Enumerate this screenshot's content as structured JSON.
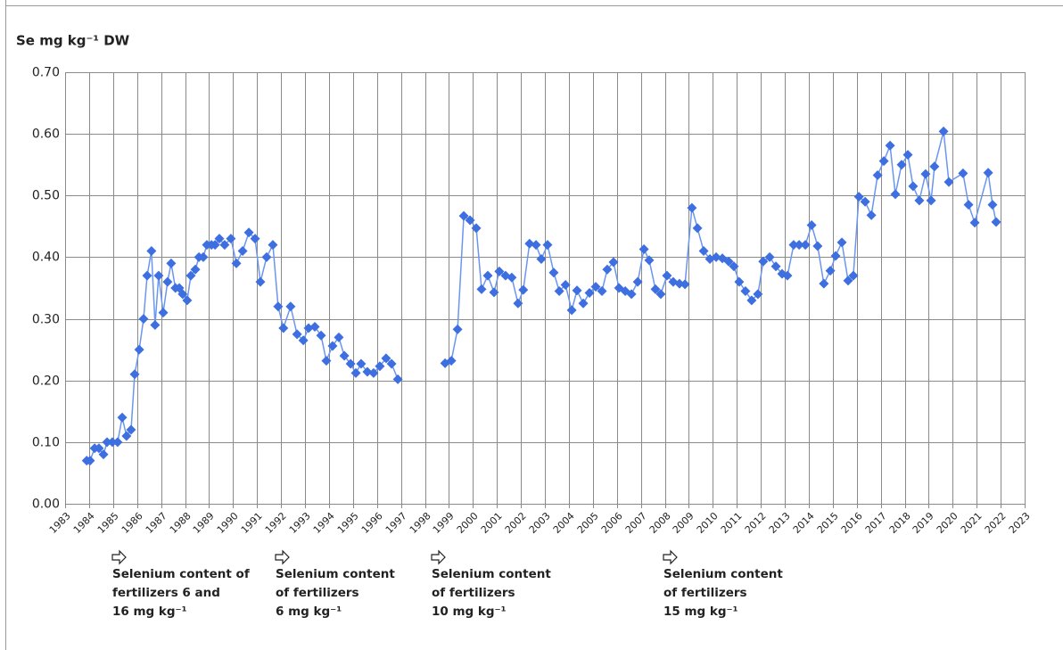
{
  "chart_data": {
    "type": "line",
    "ylabel": "Se mg kg⁻¹ DW",
    "color": "#3d6fe0",
    "grid": true,
    "ylim": [
      0,
      0.7
    ],
    "yticks": [
      {
        "value": 0,
        "label": "0.00"
      },
      {
        "value": 0.1,
        "label": "0.10"
      },
      {
        "value": 0.2,
        "label": "0.20"
      },
      {
        "value": 0.3,
        "label": "0.30"
      },
      {
        "value": 0.4,
        "label": "0.40"
      },
      {
        "value": 0.5,
        "label": "0.50"
      },
      {
        "value": 0.6,
        "label": "0.60"
      },
      {
        "value": 0.7,
        "label": "0.70"
      }
    ],
    "xlim": [
      1983,
      2023
    ],
    "xticks": [
      1983,
      1984,
      1985,
      1986,
      1987,
      1988,
      1989,
      1990,
      1991,
      1992,
      1993,
      1994,
      1995,
      1996,
      1997,
      1998,
      1999,
      2000,
      2001,
      2002,
      2003,
      2004,
      2005,
      2006,
      2007,
      2008,
      2009,
      2010,
      2011,
      2012,
      2013,
      2014,
      2015,
      2016,
      2017,
      2018,
      2019,
      2020,
      2021,
      2022,
      2023
    ],
    "x": [
      1983.9,
      1984.04,
      1984.23,
      1984.41,
      1984.6,
      1984.75,
      1984.97,
      1985.19,
      1985.38,
      1985.56,
      1985.75,
      1985.9,
      1986.09,
      1986.27,
      1986.42,
      1986.6,
      1986.75,
      1986.9,
      1987.09,
      1987.27,
      1987.42,
      1987.6,
      1987.76,
      1987.9,
      1988.09,
      1988.24,
      1988.43,
      1988.58,
      1988.76,
      1988.91,
      1989.1,
      1989.25,
      1989.43,
      1989.65,
      1989.91,
      1990.14,
      1990.4,
      1990.66,
      1990.92,
      1991.14,
      1991.4,
      1991.66,
      1991.88,
      1992.1,
      1992.4,
      1992.67,
      1992.93,
      1993.15,
      1993.41,
      1993.67,
      1993.89,
      1994.15,
      1994.41,
      1994.64,
      1994.9,
      1995.12,
      1995.34,
      1995.6,
      1995.86,
      1996.12,
      1996.38,
      1996.61,
      1996.87,
      1997.9,
      1998.84,
      1999.1,
      1999.36,
      1999.62,
      1999.88,
      2000.14,
      2000.36,
      2000.62,
      2000.88,
      2001.1,
      2001.36,
      2001.62,
      2001.88,
      2002.1,
      2002.36,
      2002.63,
      2002.85,
      2003.11,
      2003.37,
      2003.6,
      2003.86,
      2004.12,
      2004.34,
      2004.6,
      2004.86,
      2005.12,
      2005.38,
      2005.6,
      2005.86,
      2006.09,
      2006.35,
      2006.61,
      2006.87,
      2007.13,
      2007.35,
      2007.61,
      2007.83,
      2008.09,
      2008.35,
      2008.61,
      2008.84,
      2009.13,
      2009.36,
      2009.62,
      2009.88,
      2010.14,
      2010.4,
      2010.66,
      2010.88,
      2011.1,
      2011.36,
      2011.62,
      2011.88,
      2012.1,
      2012.37,
      2012.63,
      2012.89,
      2013.11,
      2013.37,
      2013.6,
      2013.86,
      2014.12,
      2014.37,
      2014.63,
      2014.9,
      2015.12,
      2015.38,
      2015.64,
      2015.86,
      2016.09,
      2016.35,
      2016.61,
      2016.87,
      2017.13,
      2017.39,
      2017.61,
      2017.87,
      2018.13,
      2018.35,
      2018.61,
      2018.87,
      2019.1,
      2019.24,
      2019.62,
      2019.84,
      2020.43,
      2020.66,
      2020.92,
      2021.48,
      2021.66,
      2021.81
    ],
    "values": [
      0.07,
      0.07,
      0.09,
      0.09,
      0.08,
      0.1,
      0.1,
      0.1,
      0.14,
      0.11,
      0.12,
      0.21,
      0.25,
      0.3,
      0.37,
      0.41,
      0.29,
      0.37,
      0.31,
      0.36,
      0.39,
      0.35,
      0.35,
      0.34,
      0.33,
      0.37,
      0.38,
      0.4,
      0.4,
      0.42,
      0.42,
      0.42,
      0.43,
      0.42,
      0.43,
      0.39,
      0.41,
      0.44,
      0.43,
      0.36,
      0.4,
      0.42,
      0.32,
      0.285,
      0.32,
      0.275,
      0.265,
      0.285,
      0.287,
      0.273,
      0.232,
      0.256,
      0.27,
      0.24,
      0.227,
      0.212,
      0.227,
      0.214,
      0.212,
      0.223,
      0.236,
      0.227,
      0.202,
      null,
      0.228,
      0.232,
      0.283,
      0.467,
      0.46,
      0.447,
      0.348,
      0.37,
      0.343,
      0.377,
      0.37,
      0.367,
      0.325,
      0.347,
      0.422,
      0.42,
      0.397,
      0.42,
      0.375,
      0.345,
      0.355,
      0.314,
      0.346,
      0.325,
      0.342,
      0.352,
      0.345,
      0.38,
      0.392,
      0.35,
      0.345,
      0.34,
      0.36,
      0.413,
      0.395,
      0.348,
      0.34,
      0.37,
      0.36,
      0.357,
      0.356,
      0.48,
      0.447,
      0.41,
      0.397,
      0.4,
      0.398,
      0.393,
      0.385,
      0.36,
      0.345,
      0.33,
      0.34,
      0.393,
      0.4,
      0.385,
      0.373,
      0.37,
      0.42,
      0.42,
      0.42,
      0.452,
      0.418,
      0.357,
      0.378,
      0.402,
      0.424,
      0.362,
      0.37,
      0.498,
      0.49,
      0.468,
      0.533,
      0.556,
      0.581,
      0.502,
      0.55,
      0.566,
      0.515,
      0.492,
      0.535,
      0.492,
      0.547,
      0.604,
      0.522,
      0.536,
      0.485,
      0.456,
      0.537,
      0.485,
      0.457
    ],
    "annotations": [
      {
        "lines": [
          "Selenium content of",
          "fertilizers 6 and",
          "16 mg kg⁻¹"
        ]
      },
      {
        "lines": [
          "Selenium content",
          "of fertilizers",
          "6 mg kg⁻¹"
        ]
      },
      {
        "lines": [
          "Selenium content",
          "of fertilizers",
          "10 mg kg⁻¹"
        ]
      },
      {
        "lines": [
          "Selenium content",
          "of fertilizers",
          "15 mg kg⁻¹"
        ]
      }
    ]
  }
}
